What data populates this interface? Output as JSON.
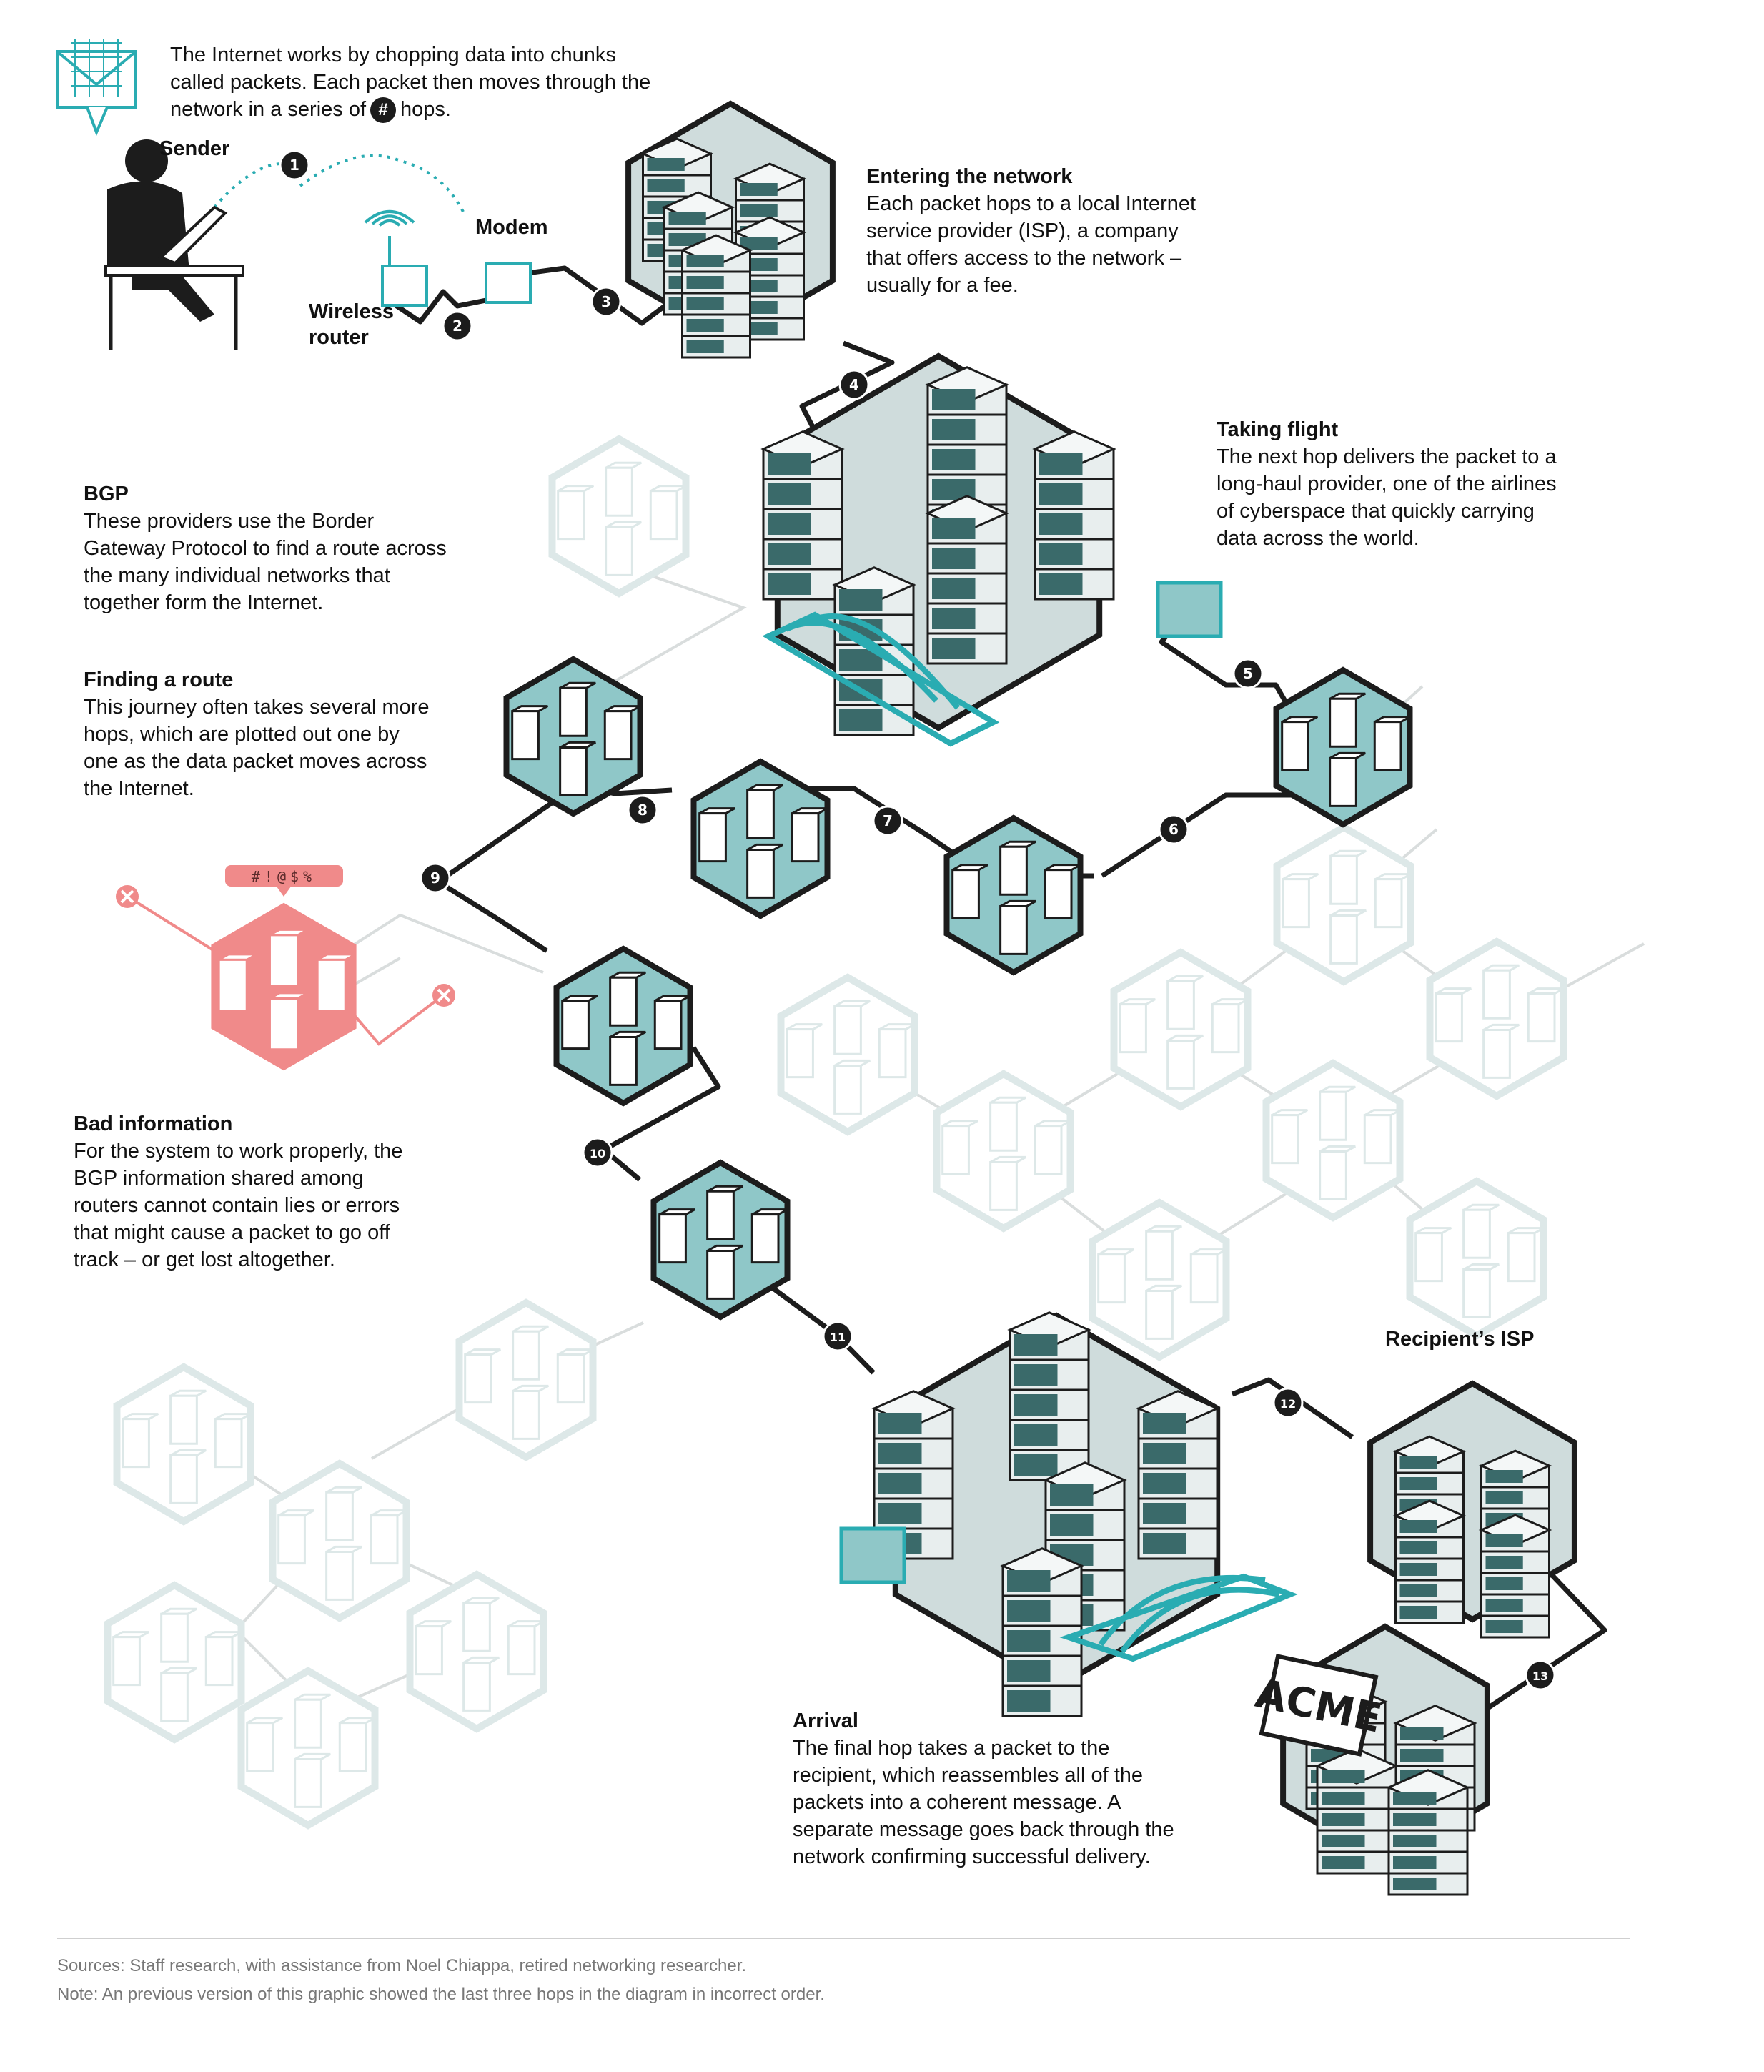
{
  "intro": {
    "before": "The Internet works by chopping data into chunks called packets. Each packet then moves through the network in a series of",
    "after": "hops."
  },
  "labels": {
    "sender": "Sender",
    "modem": "Modem",
    "wireless_router_line1": "Wireless",
    "wireless_router_line2": "router",
    "recipients_isp": "Recipient’s ISP",
    "acme": "ACME"
  },
  "sections": {
    "entering": {
      "title": "Entering the network",
      "lines": [
        "Each packet hops to a local Internet",
        "service provider (ISP), a company",
        "that offers access to the network –",
        "usually for a fee."
      ]
    },
    "flight": {
      "title": "Taking flight",
      "lines": [
        "The next hop delivers the packet to a",
        "long-haul provider, one of the airlines",
        "of cyberspace that quickly carrying",
        "data across the world."
      ]
    },
    "bgp": {
      "title": "BGP",
      "lines": [
        "These providers use the Border",
        "Gateway Protocol to find a route across",
        "the many individual networks that",
        "together form the Internet."
      ]
    },
    "route": {
      "title": "Finding a route",
      "lines": [
        "This journey often takes several more",
        "hops, which are plotted out one by",
        "one as the data packet moves across",
        "the Internet."
      ]
    },
    "bad": {
      "title": "Bad information",
      "lines": [
        "For the system to work properly, the",
        "BGP information shared among",
        "routers cannot contain lies or errors",
        "that might cause a packet to go off",
        "track – or get lost altogether."
      ]
    },
    "arrival": {
      "title": "Arrival",
      "lines": [
        "The final hop takes a packet to the",
        "recipient, which reassembles all of the",
        "packets into a coherent message. A",
        "separate message goes back through the",
        "network confirming successful delivery."
      ]
    }
  },
  "hops": [
    "1",
    "2",
    "3",
    "4",
    "5",
    "6",
    "7",
    "8",
    "9",
    "10",
    "11",
    "12",
    "13"
  ],
  "error_symbols": "#!@$%",
  "footer": {
    "sources": "Sources: Staff research, with assistance from Noel Chiappa, retired networking researcher.",
    "note": "Note: An previous version of this graphic showed the last three hops in the diagram in incorrect order."
  },
  "colors": {
    "teal": "#2aacb2",
    "teal_fill": "#8fc7c8",
    "faded": "#dde8e8",
    "faded_line": "#d9dddd",
    "error": "#f08a8a",
    "dark": "#1c1c1c",
    "server_fill": "#e8eeee"
  }
}
